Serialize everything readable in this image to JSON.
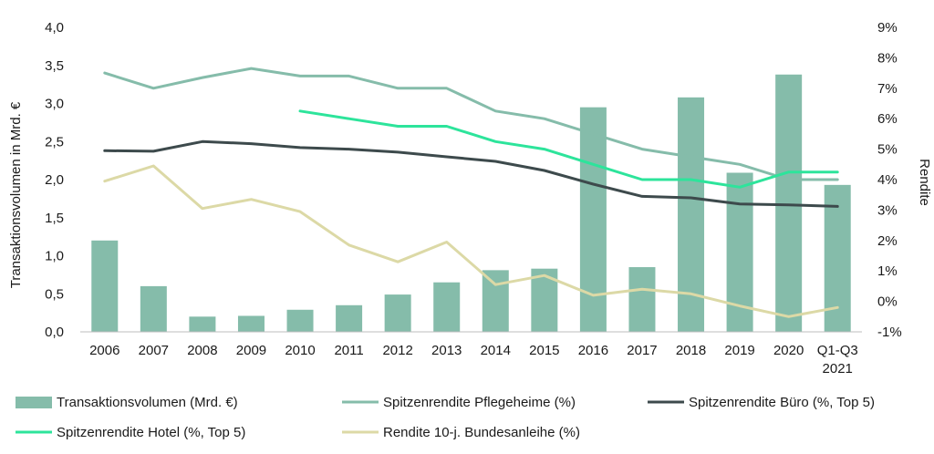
{
  "chart_data": {
    "type": "bar",
    "categories": [
      "2006",
      "2007",
      "2008",
      "2009",
      "2010",
      "2011",
      "2012",
      "2013",
      "2014",
      "2015",
      "2016",
      "2017",
      "2018",
      "2019",
      "2020",
      "Q1-Q3 2021"
    ],
    "category_lines": [
      [
        "2006"
      ],
      [
        "2007"
      ],
      [
        "2008"
      ],
      [
        "2009"
      ],
      [
        "2010"
      ],
      [
        "2011"
      ],
      [
        "2012"
      ],
      [
        "2013"
      ],
      [
        "2014"
      ],
      [
        "2015"
      ],
      [
        "2016"
      ],
      [
        "2017"
      ],
      [
        "2018"
      ],
      [
        "2019"
      ],
      [
        "2020"
      ],
      [
        "Q1-Q3",
        "2021"
      ]
    ],
    "ylabel": "Transaktionsvolumen in Mrd. €",
    "ylabel_right": "Rendite",
    "ylim": [
      0,
      4
    ],
    "ylim_right": [
      -1,
      9
    ],
    "yticks": [
      "0,0",
      "0,5",
      "1,0",
      "1,5",
      "2,0",
      "2,5",
      "3,0",
      "3,5",
      "4,0"
    ],
    "yticks_right": [
      "-1%",
      "0%",
      "1%",
      "2%",
      "3%",
      "4%",
      "5%",
      "6%",
      "7%",
      "8%",
      "9%"
    ],
    "grid": false,
    "legend_position": "bottom",
    "series": [
      {
        "name": "Transaktionsvolumen (Mrd. €)",
        "type": "bar",
        "axis": "left",
        "color": "#85bcaa",
        "values": [
          1.2,
          0.6,
          0.2,
          0.21,
          0.29,
          0.35,
          0.49,
          0.65,
          0.81,
          0.83,
          2.95,
          0.85,
          3.08,
          2.09,
          3.38,
          1.93
        ]
      },
      {
        "name": "Spitzenrendite Pflegeheime (%)",
        "type": "line",
        "axis": "right",
        "color": "#85bcaa",
        "values": [
          7.5,
          7.0,
          7.35,
          7.65,
          7.4,
          7.4,
          7.0,
          7.0,
          6.25,
          6.0,
          5.5,
          5.0,
          4.75,
          4.5,
          4.0,
          4.0
        ]
      },
      {
        "name": "Spitzenrendite Büro (%, Top 5)",
        "type": "line",
        "axis": "right",
        "color": "#3d4a4c",
        "values": [
          4.95,
          4.93,
          5.25,
          5.18,
          5.05,
          5.0,
          4.9,
          4.75,
          4.6,
          4.3,
          3.85,
          3.45,
          3.4,
          3.2,
          3.17,
          3.12
        ]
      },
      {
        "name": "Spitzenrendite Hotel (%, Top 5)",
        "type": "line",
        "axis": "right",
        "color": "#2de49b",
        "values": [
          null,
          null,
          null,
          null,
          6.25,
          6.0,
          5.75,
          5.75,
          5.25,
          5.0,
          4.5,
          4.0,
          4.0,
          3.75,
          4.25,
          4.25
        ]
      },
      {
        "name": "Rendite 10-j. Bundesanleihe (%)",
        "type": "line",
        "axis": "right",
        "color": "#dcd9a6",
        "values": [
          3.95,
          4.45,
          3.05,
          3.35,
          2.95,
          1.85,
          1.3,
          1.95,
          0.55,
          0.85,
          0.2,
          0.4,
          0.25,
          -0.15,
          -0.5,
          -0.2
        ]
      }
    ]
  }
}
